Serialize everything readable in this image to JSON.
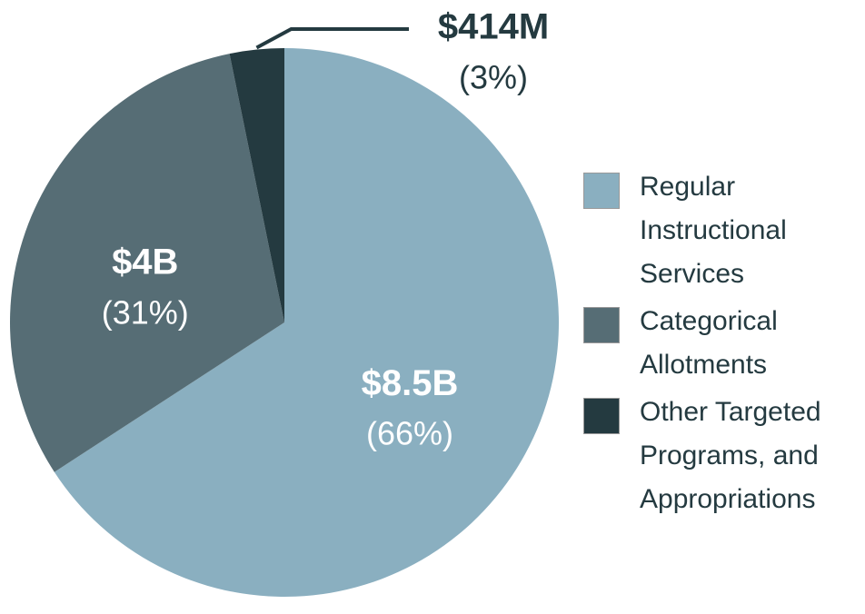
{
  "chart_data": {
    "type": "pie",
    "categories": [
      "Regular Instructional Services",
      "Categorical Allotments",
      "Other Targeted Programs, and Appropriations"
    ],
    "values": [
      8500000000,
      4000000000,
      414000000
    ],
    "value_labels": [
      "$8.5B",
      "$4B",
      "$414M"
    ],
    "percents": [
      66,
      31,
      3
    ],
    "percent_labels": [
      "(66%)",
      "(31%)",
      "(3%)"
    ],
    "colors": [
      "#8aafc0",
      "#566d75",
      "#243a40"
    ]
  }
}
